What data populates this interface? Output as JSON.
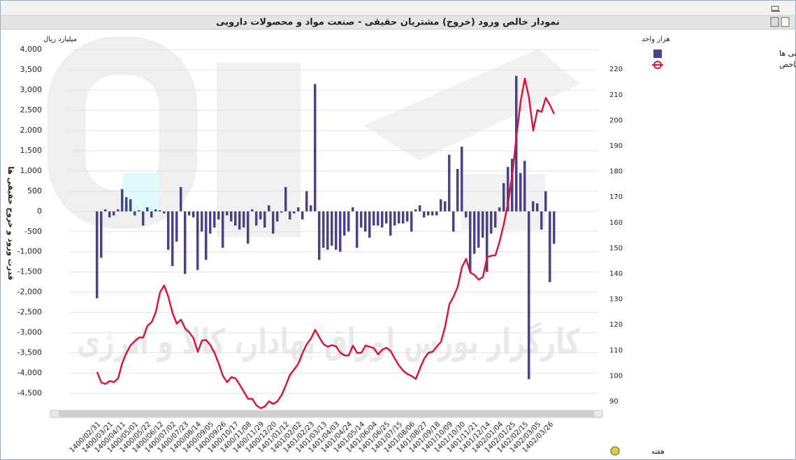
{
  "chart_data": {
    "type": "combo",
    "title": "نمودار خالص ورود (خروج) مشتریان حقیقی - صنعت مواد و محصولات دارویی",
    "y_unit": "میلیارد ریال",
    "y2_unit": "هزار واحد",
    "ylabel": "قدرت ورود و خروج حقیقی ها",
    "xlabel": "هفته",
    "watermark": "کارگزار بورس اوراق بهادار، کالا و انرژی",
    "grid": true,
    "legend": "top-right",
    "ylim": [
      -4700,
      4400
    ],
    "yticks": [
      {
        "value": 4000,
        "label": "4,000"
      },
      {
        "value": 3500,
        "label": "3,500"
      },
      {
        "value": 3000,
        "label": "3,000"
      },
      {
        "value": 2500,
        "label": "2,500"
      },
      {
        "value": 2000,
        "label": "2,000"
      },
      {
        "value": 1500,
        "label": "1,500"
      },
      {
        "value": 1000,
        "label": "1,000"
      },
      500,
      0,
      -500,
      {
        "value": -1000,
        "label": "-1,000"
      },
      {
        "value": -1500,
        "label": "-1,500"
      },
      {
        "value": -2000,
        "label": "-2,000"
      },
      {
        "value": -2500,
        "label": "-2,500"
      },
      {
        "value": -3000,
        "label": "-3,000"
      },
      {
        "value": -3500,
        "label": "-3,500"
      },
      {
        "value": -4000,
        "label": "-4,000"
      },
      {
        "value": -4500,
        "label": "-4,500"
      }
    ],
    "y2lim": [
      90,
      234
    ],
    "y2ticks": [
      220,
      210,
      200,
      190,
      180,
      170,
      160,
      150,
      140,
      130,
      120,
      110,
      100,
      90
    ],
    "categories": [
      "1400/02/31",
      null,
      null,
      "1400/03/21",
      null,
      null,
      "1400/04/11",
      null,
      null,
      "1400/05/01",
      null,
      null,
      "1400/05/22",
      null,
      null,
      "1400/06/12",
      null,
      null,
      "1400/07/02",
      null,
      null,
      "1400/07/23",
      null,
      null,
      "1400/08/14",
      null,
      null,
      "1400/09/05",
      null,
      null,
      "1400/09/26",
      null,
      null,
      "1400/10/17",
      null,
      null,
      "1400/11/08",
      null,
      null,
      "1400/11/29",
      null,
      null,
      "1400/12/20",
      null,
      null,
      "1401/01/12",
      null,
      null,
      "1401/02/02",
      null,
      null,
      "1401/02/23",
      null,
      null,
      "1401/03/13",
      null,
      null,
      "1401/04/03",
      null,
      null,
      "1401/04/24",
      null,
      null,
      "1401/05/14",
      null,
      null,
      "1401/06/04",
      null,
      null,
      "1401/06/25",
      null,
      null,
      "1401/07/15",
      null,
      null,
      "1401/08/06",
      null,
      null,
      "1401/08/27",
      null,
      null,
      "1401/09/18",
      null,
      null,
      "1401/10/09",
      null,
      null,
      "1401/10/30",
      null,
      null,
      "1401/11/21",
      null,
      null,
      "1401/12/14",
      null,
      null,
      "1402/01/04",
      null,
      null,
      "1402/01/25",
      null,
      null,
      "1402/02/15",
      null,
      null,
      "1402/03/05",
      null,
      null,
      "1402/03/26",
      null
    ],
    "series": [
      {
        "name": "قدرت ورود و خروج حقیقی ها",
        "type": "bar",
        "color": "#4b3f8f",
        "values": [
          -2150,
          -1150,
          50,
          -150,
          -100,
          50,
          550,
          350,
          300,
          -100,
          30,
          -350,
          100,
          -150,
          50,
          30,
          -50,
          -950,
          -1350,
          -750,
          600,
          -1550,
          -100,
          -150,
          -1450,
          -500,
          -1200,
          -550,
          -400,
          -200,
          -900,
          -100,
          -250,
          -350,
          -450,
          -400,
          -800,
          50,
          -350,
          -200,
          -400,
          150,
          -550,
          -250,
          -30,
          600,
          -200,
          -50,
          100,
          -200,
          500,
          150,
          3150,
          -1200,
          -900,
          -950,
          -850,
          -950,
          -1000,
          -600,
          -500,
          100,
          -900,
          -400,
          -500,
          -650,
          -350,
          -350,
          -400,
          -300,
          -600,
          -350,
          -300,
          -300,
          -250,
          -500,
          50,
          150,
          -150,
          -100,
          -100,
          -100,
          300,
          250,
          1400,
          -500,
          1050,
          1600,
          -150,
          -1500,
          -1050,
          -900,
          -650,
          -1500,
          -550,
          -400,
          100,
          700,
          1100,
          1300,
          3350,
          950,
          1250,
          -4150,
          250,
          200,
          -450,
          500,
          -1750,
          -800
        ]
      },
      {
        "name": "شاخص",
        "type": "line",
        "axis": "y2",
        "color": "#d6163e",
        "values": [
          101.5,
          97.4,
          96.8,
          98,
          97.5,
          99,
          105,
          109,
          112,
          113.6,
          115,
          115,
          119.6,
          121,
          125,
          132.7,
          135.4,
          130.8,
          124.5,
          120.4,
          122,
          118.5,
          117,
          114.6,
          109.4,
          113.8,
          114,
          112,
          109,
          104.8,
          100,
          97.5,
          99.5,
          99,
          96.5,
          93.8,
          91,
          91,
          88.4,
          87.3,
          88,
          90,
          89,
          90,
          92.5,
          96.3,
          100.4,
          102.5,
          104.8,
          109,
          112.4,
          114.6,
          118,
          115,
          112.4,
          111.4,
          112,
          111.5,
          109,
          108,
          108,
          111.8,
          109,
          109,
          111.8,
          111.4,
          110.8,
          108.4,
          110.2,
          111,
          109.7,
          106.7,
          104,
          102,
          100.7,
          99.9,
          98.8,
          102.9,
          106.7,
          109,
          109.4,
          111.4,
          113.3,
          119.3,
          128,
          131,
          134.9,
          142.5,
          145.8,
          140.4,
          139.5,
          137.6,
          138.7,
          146.4,
          147,
          147.2,
          152.7,
          159.5,
          167.7,
          178.7,
          193.7,
          207.4,
          216.4,
          208.8,
          196,
          204,
          203.3,
          208.8,
          206,
          202.5
        ]
      }
    ]
  }
}
